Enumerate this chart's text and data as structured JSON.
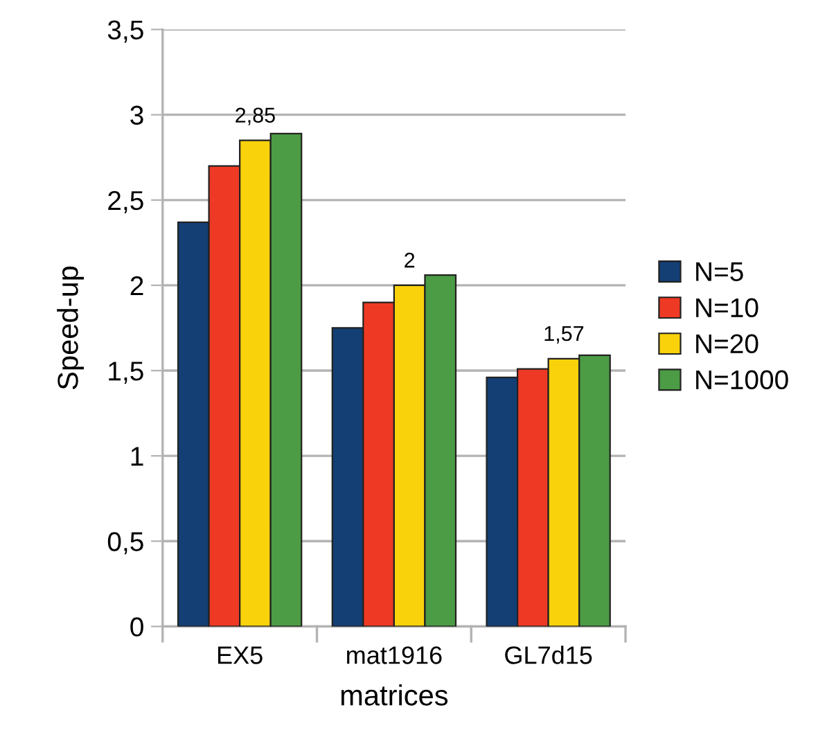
{
  "chart_data": {
    "type": "bar",
    "xlabel": "matrices",
    "ylabel": "Speed-up",
    "categories": [
      "EX5",
      "mat1916",
      "GL7d15"
    ],
    "series": [
      {
        "name": "N=5",
        "color": "#133f75",
        "values": [
          2.37,
          1.75,
          1.46
        ]
      },
      {
        "name": "N=10",
        "color": "#ee3a24",
        "values": [
          2.7,
          1.9,
          1.51
        ]
      },
      {
        "name": "N=20",
        "color": "#fad20b",
        "values": [
          2.85,
          2,
          1.57
        ],
        "value_labels": [
          "2,85",
          "2",
          "1,57"
        ]
      },
      {
        "name": "N=1000",
        "color": "#4c9b45",
        "values": [
          2.89,
          2.06,
          1.59
        ]
      }
    ],
    "ylim": [
      0,
      3.5
    ],
    "yticks": [
      0,
      {
        "value": 0.5,
        "label": "0,5"
      },
      1,
      {
        "value": 1.5,
        "label": "1,5"
      },
      2,
      {
        "value": 2.5,
        "label": "2,5"
      },
      3,
      {
        "value": 3.5,
        "label": "3,5"
      }
    ],
    "grid": "y",
    "legend": "right"
  }
}
